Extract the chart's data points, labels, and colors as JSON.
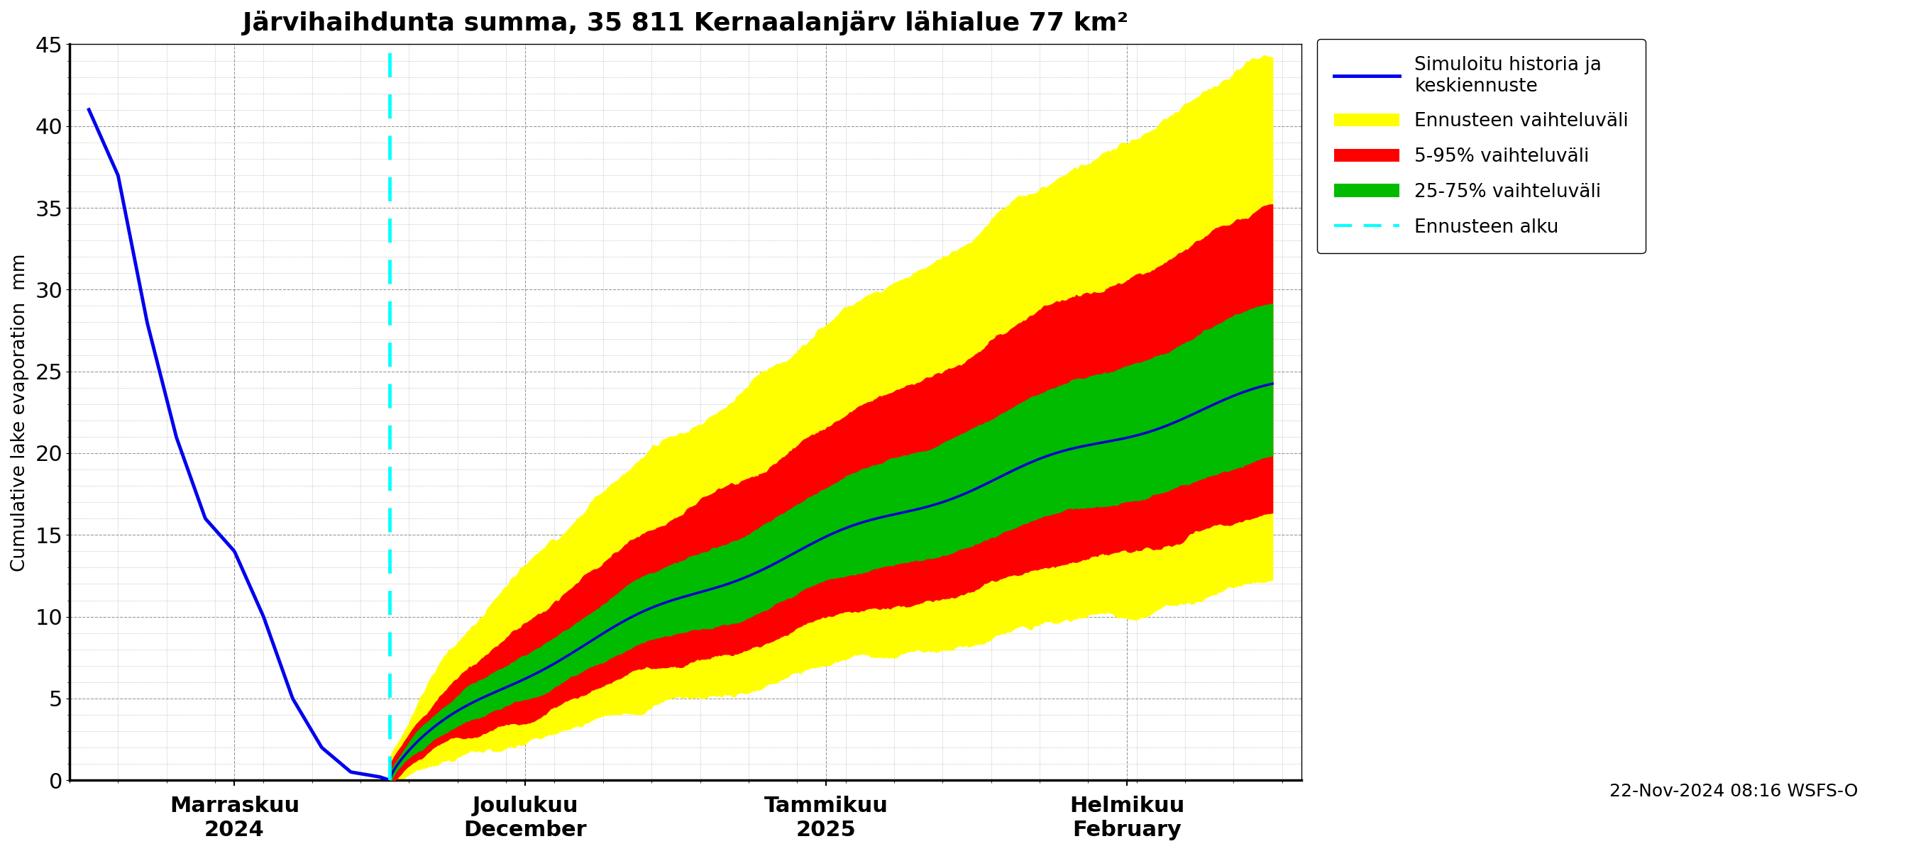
{
  "title": "Järvihaihdunta summa, 35 811 Kernaalanjärv lähialue 77 km²",
  "ylabel": "Cumulative lake evaporation  mm",
  "ylim": [
    0,
    45
  ],
  "yticks": [
    0,
    5,
    10,
    15,
    20,
    25,
    30,
    35,
    40,
    45
  ],
  "colors": {
    "history_line": "#0000EE",
    "median_line": "#0000CC",
    "yellow_band": "#FFFF00",
    "red_band": "#FF0000",
    "green_band": "#00BB00",
    "cyan_dashed": "#00FFFF"
  },
  "legend_labels": [
    "Simuloitu historia ja\nkeskiennuste",
    "Ennusteen vaihteluväli",
    "5-95% vaihteluväli",
    "25-75% vaihteluväli",
    "Ennusteen alku"
  ],
  "legend_colors": [
    "#0000EE",
    "#FFFF00",
    "#FF0000",
    "#00BB00",
    "#00FFFF"
  ],
  "footnote": "22-Nov-2024 08:16 WSFS-O",
  "x_tick_labels": [
    "Marraskuu\n2024",
    "Joulukuu\nDecember",
    "Tammikuu\n2025",
    "Helmikuu\nFebruary"
  ],
  "x_tick_positions": [
    15,
    45,
    76,
    107
  ],
  "xlim": [
    -2,
    125
  ],
  "forecast_start": 30,
  "hist_start": 0,
  "hist_end": 31,
  "fc_end": 120
}
